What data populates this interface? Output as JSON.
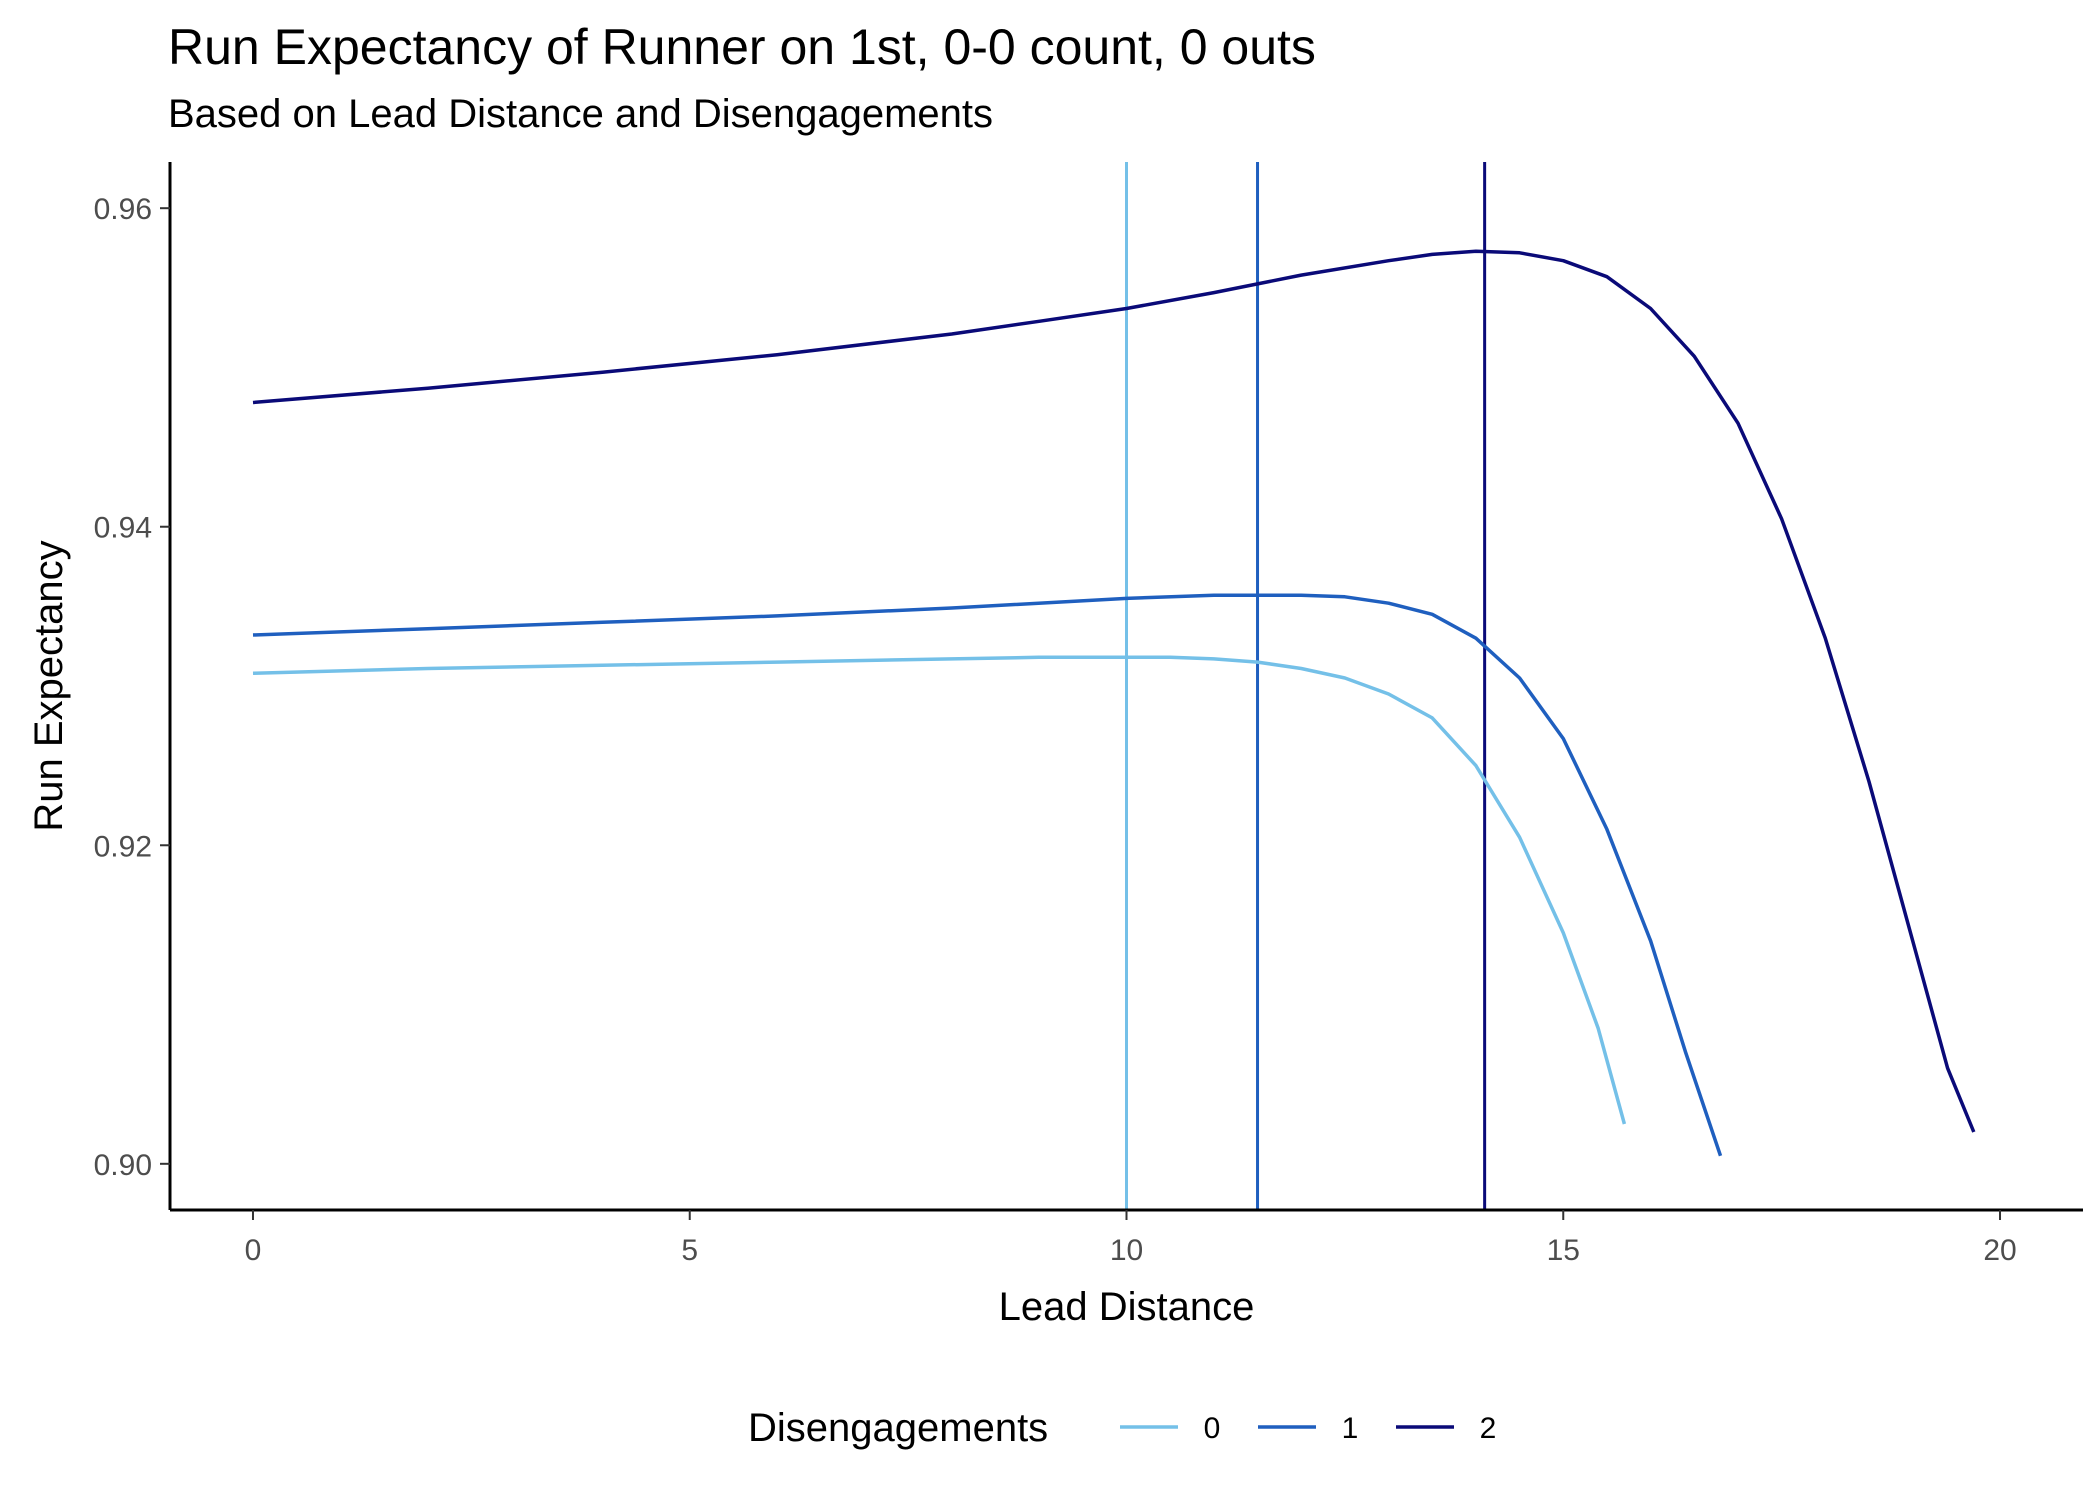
{
  "chart_data": {
    "type": "line",
    "title": "Run Expectancy of Runner on 1st, 0-0 count, 0 outs",
    "subtitle": "Based on Lead Distance and Disengagements",
    "xlabel": "Lead Distance",
    "ylabel": "Run Expectancy",
    "xlim": [
      -0.95,
      20.95
    ],
    "ylim": [
      0.8971,
      0.9629
    ],
    "x_ticks": [
      0,
      5,
      10,
      15,
      20
    ],
    "x_tick_labels": [
      "0",
      "5",
      "10",
      "15",
      "20"
    ],
    "y_ticks": [
      0.9,
      0.92,
      0.94,
      0.96
    ],
    "y_tick_labels": [
      "0.90",
      "0.92",
      "0.94",
      "0.96"
    ],
    "grid": false,
    "legend": {
      "title": "Disengagements",
      "position": "bottom"
    },
    "series": [
      {
        "name": "0",
        "color": "#74c0e8",
        "points": [
          [
            0,
            0.9308
          ],
          [
            2,
            0.9311
          ],
          [
            4,
            0.9313
          ],
          [
            6,
            0.9315
          ],
          [
            8,
            0.9317
          ],
          [
            9,
            0.9318
          ],
          [
            10,
            0.9318
          ],
          [
            10.5,
            0.9318
          ],
          [
            11,
            0.9317
          ],
          [
            11.5,
            0.9315
          ],
          [
            12,
            0.9311
          ],
          [
            12.5,
            0.9305
          ],
          [
            13,
            0.9295
          ],
          [
            13.5,
            0.928
          ],
          [
            14,
            0.925
          ],
          [
            14.5,
            0.9205
          ],
          [
            15,
            0.9145
          ],
          [
            15.4,
            0.9085
          ],
          [
            15.7,
            0.9025
          ]
        ],
        "vline": 10
      },
      {
        "name": "1",
        "color": "#1f5fbf",
        "points": [
          [
            0,
            0.9332
          ],
          [
            2,
            0.9336
          ],
          [
            4,
            0.934
          ],
          [
            6,
            0.9344
          ],
          [
            8,
            0.9349
          ],
          [
            10,
            0.9355
          ],
          [
            11,
            0.9357
          ],
          [
            11.5,
            0.9357
          ],
          [
            12,
            0.9357
          ],
          [
            12.5,
            0.9356
          ],
          [
            13,
            0.9352
          ],
          [
            13.5,
            0.9345
          ],
          [
            14,
            0.933
          ],
          [
            14.5,
            0.9305
          ],
          [
            15,
            0.9267
          ],
          [
            15.5,
            0.921
          ],
          [
            16,
            0.914
          ],
          [
            16.4,
            0.907
          ],
          [
            16.8,
            0.9005
          ]
        ],
        "vline": 11.5
      },
      {
        "name": "2",
        "color": "#0a0a78",
        "points": [
          [
            0,
            0.9478
          ],
          [
            2,
            0.9487
          ],
          [
            4,
            0.9497
          ],
          [
            6,
            0.9508
          ],
          [
            8,
            0.9521
          ],
          [
            9,
            0.9529
          ],
          [
            10,
            0.9537
          ],
          [
            11,
            0.9547
          ],
          [
            12,
            0.9558
          ],
          [
            13,
            0.9567
          ],
          [
            13.5,
            0.9571
          ],
          [
            14,
            0.9573
          ],
          [
            14.5,
            0.9572
          ],
          [
            15,
            0.9567
          ],
          [
            15.5,
            0.9557
          ],
          [
            16,
            0.9537
          ],
          [
            16.5,
            0.9507
          ],
          [
            17,
            0.9465
          ],
          [
            17.5,
            0.9405
          ],
          [
            18,
            0.933
          ],
          [
            18.5,
            0.924
          ],
          [
            19,
            0.914
          ],
          [
            19.4,
            0.906
          ],
          [
            19.7,
            0.902
          ]
        ],
        "vline": 14.1
      }
    ]
  }
}
